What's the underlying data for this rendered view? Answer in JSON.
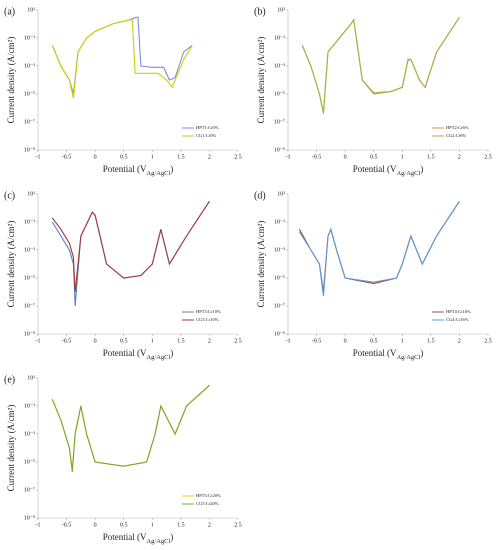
{
  "chart_data": [
    {
      "type": "line",
      "label": "(a)",
      "ylabel": "Current density (A/cm²)",
      "xlabel": [
        "Potential (V",
        "Ag/AgCl",
        ")"
      ],
      "xlim": [
        -1,
        2.5
      ],
      "xticks": [
        -1,
        -0.5,
        0,
        0.5,
        1,
        1.5,
        2,
        2.5
      ],
      "log_y": true,
      "ylim": [
        1e-09,
        10
      ],
      "yticks": [
        {
          "value": 10,
          "label": "10¹"
        },
        {
          "value": 0.1,
          "label": "10⁻¹"
        },
        {
          "value": 0.001,
          "label": "10⁻³"
        },
        {
          "value": 1e-05,
          "label": "10⁻⁵"
        },
        {
          "value": 1e-07,
          "label": "10⁻⁷"
        },
        {
          "value": 1e-09,
          "label": "10⁻⁹"
        }
      ],
      "grid": false,
      "legend": "lower right",
      "series": [
        {
          "name": "HPT1:Cr0%",
          "color": "#7b8fd8",
          "x": [
            -0.75,
            -0.6,
            -0.45,
            -0.38,
            -0.3,
            -0.15,
            0,
            0.3,
            0.6,
            0.72,
            0.75,
            0.8,
            1.0,
            1.2,
            1.3,
            1.4,
            1.55,
            1.7
          ],
          "values": [
            0.03,
            0.001,
            0.0001,
            1e-05,
            0.01,
            0.1,
            0.3,
            1,
            2,
            3,
            3,
            0.001,
            0.0008,
            0.0008,
            0.0001,
            0.00015,
            0.01,
            0.03
          ]
        },
        {
          "name": "CG1:Cr0%",
          "color": "#c8d200",
          "x": [
            -0.75,
            -0.6,
            -0.45,
            -0.38,
            -0.3,
            -0.15,
            0,
            0.3,
            0.6,
            0.65,
            0.7,
            0.9,
            1.1,
            1.25,
            1.35,
            1.55,
            1.7
          ],
          "values": [
            0.03,
            0.001,
            0.0001,
            5e-06,
            0.01,
            0.1,
            0.3,
            1,
            2,
            2,
            0.0003,
            0.0003,
            0.0003,
            0.0001,
            3e-05,
            0.003,
            0.03
          ]
        }
      ]
    },
    {
      "type": "line",
      "label": "(b)",
      "ylabel": "Current density (A/cm²)",
      "xlabel": [
        "Potential (V",
        "Ag/AgCl",
        ")"
      ],
      "xlim": [
        -1,
        2.5
      ],
      "xticks": [
        -1,
        -0.5,
        0,
        0.5,
        1,
        1.5,
        2,
        2.5
      ],
      "log_y": true,
      "ylim": [
        1e-09,
        10
      ],
      "yticks": [
        {
          "value": 10,
          "label": "10¹"
        },
        {
          "value": 0.1,
          "label": "10⁻¹"
        },
        {
          "value": 0.001,
          "label": "10⁻³"
        },
        {
          "value": 1e-05,
          "label": "10⁻⁵"
        },
        {
          "value": 1e-07,
          "label": "10⁻⁷"
        },
        {
          "value": 1e-09,
          "label": "10⁻⁹"
        }
      ],
      "grid": false,
      "legend": "lower right",
      "series": [
        {
          "name": "HPT2:Cr6%",
          "color": "#c09a55",
          "x": [
            -0.75,
            -0.6,
            -0.45,
            -0.38,
            -0.3,
            -0.1,
            0.1,
            0.15,
            0.3,
            0.5,
            0.8,
            1.0,
            1.1,
            1.15,
            1.3,
            1.4,
            1.6,
            2.0
          ],
          "values": [
            0.03,
            0.001,
            1e-05,
            5e-07,
            0.01,
            0.1,
            1,
            2,
            0.0001,
            1e-05,
            1.5e-05,
            3e-05,
            0.003,
            0.003,
            0.0001,
            3e-05,
            0.01,
            3
          ]
        },
        {
          "name": "CG2:Cr6%",
          "color": "#a8b040",
          "x": [
            -0.75,
            -0.6,
            -0.45,
            -0.38,
            -0.3,
            -0.1,
            0.1,
            0.15,
            0.3,
            0.5,
            0.8,
            1.0,
            1.1,
            1.15,
            1.3,
            1.4,
            1.6,
            2.0
          ],
          "values": [
            0.03,
            0.001,
            1e-05,
            4e-07,
            0.01,
            0.1,
            1,
            2,
            0.0001,
            1.2e-05,
            1.5e-05,
            3e-05,
            0.0025,
            0.003,
            0.0001,
            3e-05,
            0.01,
            3
          ]
        }
      ]
    },
    {
      "type": "line",
      "label": "(c)",
      "ylabel": "Current density (A/cm²)",
      "xlabel": [
        "Potential (V",
        "Ag/AgCl",
        ")"
      ],
      "xlim": [
        -1,
        2.5
      ],
      "xticks": [
        -1,
        -0.5,
        0,
        0.5,
        1,
        1.5,
        2,
        2.5
      ],
      "log_y": true,
      "ylim": [
        1e-09,
        10
      ],
      "yticks": [
        {
          "value": 10,
          "label": "10¹"
        },
        {
          "value": 0.1,
          "label": "10⁻¹"
        },
        {
          "value": 0.001,
          "label": "10⁻³"
        },
        {
          "value": 1e-05,
          "label": "10⁻⁵"
        },
        {
          "value": 1e-07,
          "label": "10⁻⁷"
        },
        {
          "value": 1e-09,
          "label": "10⁻⁹"
        }
      ],
      "grid": false,
      "legend": "lower right",
      "series": [
        {
          "name": "HPT3:Cr10%",
          "color": "#5b7fc0",
          "x": [
            -0.75,
            -0.6,
            -0.45,
            -0.38,
            -0.35,
            -0.25,
            -0.05,
            0.0,
            0.2,
            0.5,
            0.8,
            1.0,
            1.15,
            1.3,
            1.6,
            2.0
          ],
          "values": [
            0.1,
            0.01,
            0.001,
            0.0001,
            1e-07,
            0.01,
            0.5,
            0.3,
            0.0001,
            1e-05,
            1.5e-05,
            0.0001,
            0.03,
            0.0001,
            0.01,
            3
          ]
        },
        {
          "name": "CG3:Cr10%",
          "color": "#a03a3a",
          "x": [
            -0.75,
            -0.6,
            -0.45,
            -0.38,
            -0.35,
            -0.25,
            -0.05,
            0.0,
            0.2,
            0.5,
            0.8,
            1.0,
            1.15,
            1.3,
            1.6,
            2.0
          ],
          "values": [
            0.2,
            0.03,
            0.003,
            0.0003,
            1e-06,
            0.01,
            0.5,
            0.3,
            0.0001,
            1e-05,
            1.5e-05,
            0.0001,
            0.03,
            0.0001,
            0.01,
            3
          ]
        }
      ]
    },
    {
      "type": "line",
      "label": "(d)",
      "ylabel": "Current density (A/cm²)",
      "xlabel": [
        "Potential (V",
        "Ag/AgCl",
        ")"
      ],
      "xlim": [
        -1,
        2.5
      ],
      "xticks": [
        -1,
        -0.5,
        0,
        0.5,
        1,
        1.5,
        2,
        2.5
      ],
      "log_y": true,
      "ylim": [
        1e-09,
        10
      ],
      "yticks": [
        {
          "value": 10,
          "label": "10¹"
        },
        {
          "value": 0.1,
          "label": "10⁻¹"
        },
        {
          "value": 0.001,
          "label": "10⁻³"
        },
        {
          "value": 1e-05,
          "label": "10⁻⁵"
        },
        {
          "value": 1e-07,
          "label": "10⁻⁷"
        },
        {
          "value": 1e-09,
          "label": "10⁻⁹"
        }
      ],
      "grid": false,
      "legend": "lower right",
      "series": [
        {
          "name": "HPT4:Cr16%",
          "color": "#a04848",
          "x": [
            -0.8,
            -0.6,
            -0.45,
            -0.38,
            -0.3,
            -0.25,
            -0.15,
            0,
            0.5,
            0.9,
            1.0,
            1.15,
            1.35,
            1.6,
            2.0
          ],
          "values": [
            0.03,
            0.001,
            0.0001,
            1e-06,
            0.01,
            0.03,
            0.001,
            1e-05,
            4e-06,
            1e-05,
            0.0001,
            0.01,
            0.0001,
            0.01,
            3
          ]
        },
        {
          "name": "CG4:Cr16%",
          "color": "#5b9bd5",
          "x": [
            -0.8,
            -0.6,
            -0.45,
            -0.38,
            -0.3,
            -0.25,
            -0.15,
            0,
            0.5,
            0.9,
            1.0,
            1.15,
            1.35,
            1.6,
            2.0
          ],
          "values": [
            0.02,
            0.001,
            0.0001,
            5e-07,
            0.01,
            0.03,
            0.001,
            1e-05,
            5e-06,
            1e-05,
            0.0001,
            0.01,
            0.0001,
            0.01,
            3
          ]
        }
      ]
    },
    {
      "type": "line",
      "label": "(e)",
      "ylabel": "Current density (A/cm²)",
      "xlabel": [
        "Potential (V",
        "Ag/AgCl",
        ")"
      ],
      "xlim": [
        -1,
        2.5
      ],
      "xticks": [
        -1,
        -0.5,
        0,
        0.5,
        1,
        1.5,
        2,
        2.5
      ],
      "log_y": true,
      "ylim": [
        1e-09,
        10
      ],
      "yticks": [
        {
          "value": 10,
          "label": "10¹"
        },
        {
          "value": 0.1,
          "label": "10⁻¹"
        },
        {
          "value": 0.001,
          "label": "10⁻³"
        },
        {
          "value": 1e-05,
          "label": "10⁻⁵"
        },
        {
          "value": 1e-07,
          "label": "10⁻⁷"
        },
        {
          "value": 1e-09,
          "label": "10⁻⁹"
        }
      ],
      "grid": false,
      "legend": "lower right",
      "series": [
        {
          "name": "HPT5:Cr20%",
          "color": "#f0d000",
          "x": [
            -0.75,
            -0.6,
            -0.45,
            -0.4,
            -0.35,
            -0.25,
            -0.15,
            0,
            0.5,
            0.9,
            1.05,
            1.15,
            1.4,
            1.6,
            2.0
          ],
          "values": [
            0.3,
            0.01,
            0.0001,
            3e-06,
            0.001,
            0.1,
            0.001,
            1e-05,
            5e-06,
            1e-05,
            0.001,
            0.1,
            0.001,
            0.1,
            3
          ]
        },
        {
          "name": "CG5:Cr20%",
          "color": "#72a832",
          "x": [
            -0.75,
            -0.6,
            -0.45,
            -0.4,
            -0.35,
            -0.25,
            -0.15,
            0,
            0.5,
            0.9,
            1.05,
            1.15,
            1.4,
            1.6,
            2.0
          ],
          "values": [
            0.3,
            0.01,
            0.0001,
            2e-06,
            0.001,
            0.1,
            0.001,
            1e-05,
            5e-06,
            1e-05,
            0.001,
            0.1,
            0.001,
            0.1,
            3
          ]
        }
      ]
    }
  ]
}
